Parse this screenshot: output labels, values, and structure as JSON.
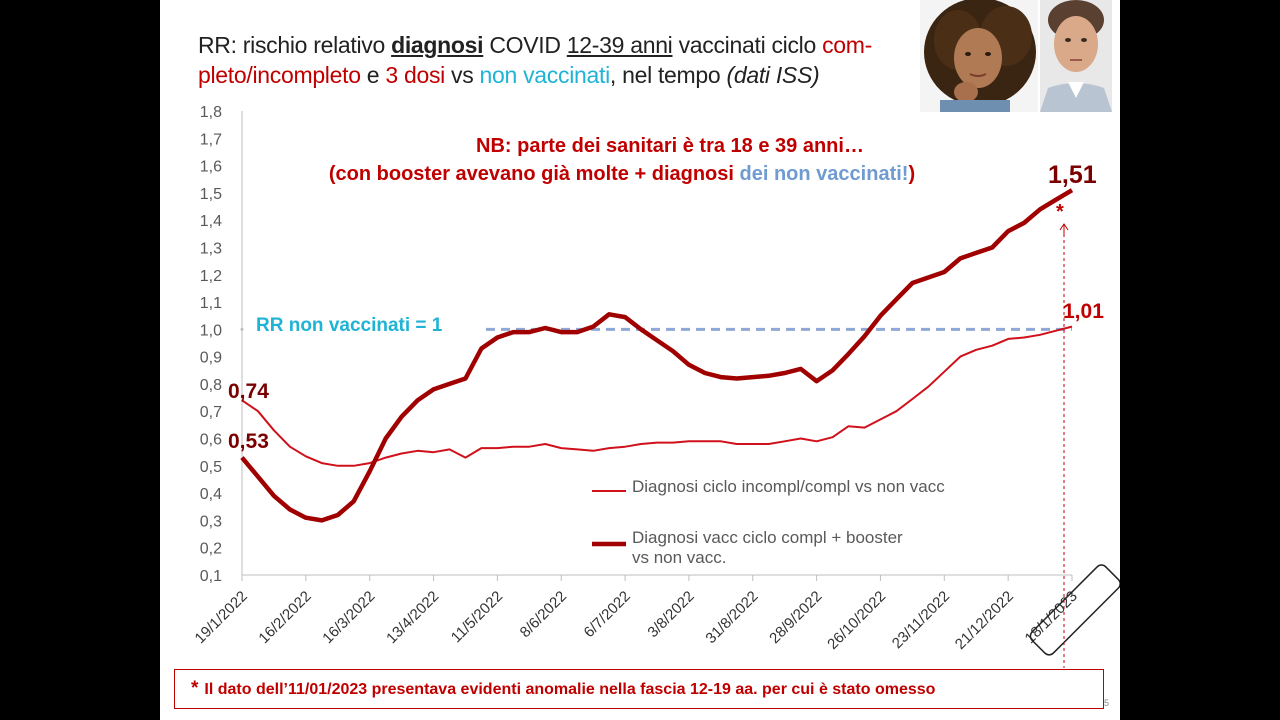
{
  "title": {
    "p1": "RR: rischio relativo ",
    "bold": "diagnosi",
    "p2": " COVID ",
    "age": "12-39 anni",
    "p3": " vaccinati ciclo ",
    "red1": "com-pleto/incompleto",
    "p4": " e ",
    "red2": "3 dosi",
    "p5": " vs ",
    "cyan": "non vaccinati",
    "p6": ", nel tempo ",
    "italic": "(dati ISS)"
  },
  "annotations": {
    "nb_line1": "NB: parte dei sanitari è tra 18 e 39 anni…",
    "nb_line2_a": "(con booster avevano già molte + diagnosi ",
    "nb_line2_b": "dei non vaccinati!",
    "nb_line2_c": ")",
    "rr_label": "RR non vaccinati = 1",
    "start_booster": "0,53",
    "start_cycle": "0,74",
    "end_booster": "1,51",
    "end_cycle": "1,01",
    "asterisk": "*"
  },
  "footnote": {
    "star": "*",
    "text": "Il dato dell’11/01/2023 presentava evidenti anomalie nella fascia 12-19 aa. per cui è stato omesso"
  },
  "page_number": "5",
  "colors": {
    "series_dark": "#a00000",
    "series_light": "#d0101a",
    "reference": "#8fa8d4",
    "annotation_red": "#c00000",
    "annotation_blue": "#6f9bd1",
    "rr_label": "#1fb3d6"
  },
  "chart_data": {
    "type": "line",
    "title": "",
    "xlabel": "",
    "ylabel": "",
    "ylim": [
      0.1,
      1.8
    ],
    "yticks": [
      "0,1",
      "0,2",
      "0,3",
      "0,4",
      "0,5",
      "0,6",
      "0,7",
      "0,8",
      "0,9",
      "1,0",
      "1,1",
      "1,2",
      "1,3",
      "1,4",
      "1,5",
      "1,6",
      "1,7",
      "1,8"
    ],
    "xticks": [
      "19/1/2022",
      "16/2/2022",
      "16/3/2022",
      "13/4/2022",
      "11/5/2022",
      "8/6/2022",
      "6/7/2022",
      "3/8/2022",
      "31/8/2022",
      "28/9/2022",
      "26/10/2022",
      "23/11/2022",
      "21/12/2022",
      "18/1/2023"
    ],
    "reference_line": 1.0,
    "legend_position": "center-right",
    "series": [
      {
        "name": "Diagnosi ciclo incompl/compl vs non vacc",
        "style": "thin",
        "values": [
          0.74,
          0.7,
          0.63,
          0.57,
          0.535,
          0.51,
          0.5,
          0.5,
          0.51,
          0.53,
          0.545,
          0.555,
          0.55,
          0.56,
          0.53,
          0.565,
          0.565,
          0.57,
          0.57,
          0.58,
          0.565,
          0.56,
          0.555,
          0.565,
          0.57,
          0.58,
          0.585,
          0.585,
          0.59,
          0.59,
          0.59,
          0.58,
          0.58,
          0.58,
          0.59,
          0.6,
          0.59,
          0.605,
          0.645,
          0.64,
          0.67,
          0.7,
          0.745,
          0.79,
          0.845,
          0.9,
          0.925,
          0.94,
          0.965,
          0.97,
          0.98,
          0.995,
          1.01
        ]
      },
      {
        "name": "Diagnosi vacc ciclo compl + booster vs non vacc.",
        "style": "thick",
        "values": [
          0.53,
          0.46,
          0.39,
          0.34,
          0.31,
          0.3,
          0.32,
          0.37,
          0.48,
          0.6,
          0.68,
          0.74,
          0.78,
          0.8,
          0.82,
          0.93,
          0.97,
          0.99,
          0.99,
          1.005,
          0.99,
          0.99,
          1.01,
          1.055,
          1.045,
          1.0,
          0.96,
          0.92,
          0.87,
          0.84,
          0.825,
          0.82,
          0.825,
          0.83,
          0.84,
          0.855,
          0.81,
          0.85,
          0.91,
          0.975,
          1.05,
          1.11,
          1.17,
          1.19,
          1.21,
          1.26,
          1.28,
          1.3,
          1.36,
          1.39,
          1.44,
          1.475,
          1.51
        ]
      }
    ]
  }
}
